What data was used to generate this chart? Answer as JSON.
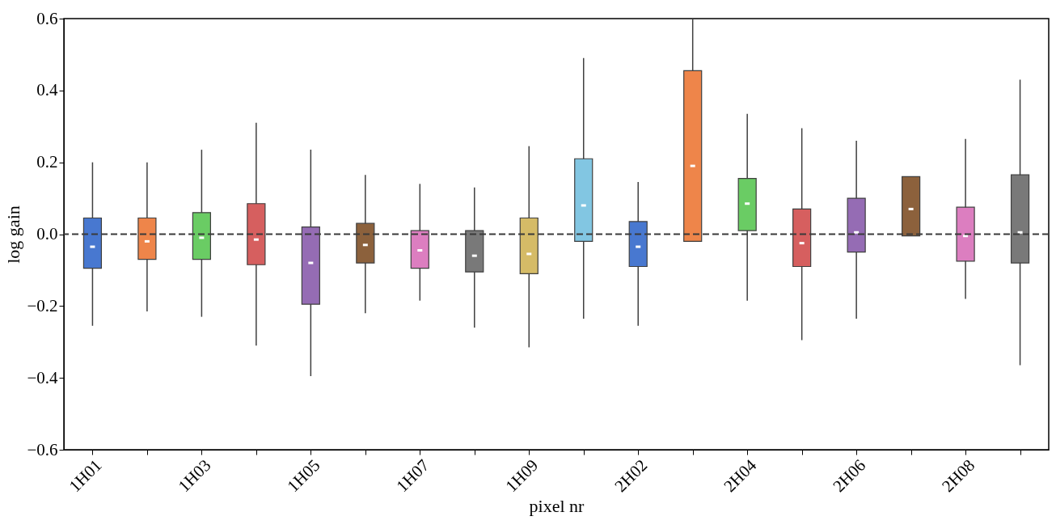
{
  "chart_data": {
    "type": "box",
    "xlabel": "pixel nr",
    "ylabel": "log gain",
    "categories": [
      "1H01",
      null,
      "1H03",
      null,
      "1H05",
      null,
      "1H07",
      null,
      "1H09",
      null,
      "2H02",
      null,
      "2H04",
      null,
      "2H06",
      null,
      "2H08",
      null
    ],
    "colors": [
      "#4878d0",
      "#ee854a",
      "#6acc64",
      "#d65f5f",
      "#956cb4",
      "#8c613c",
      "#dc7ec0",
      "#797979",
      "#d5bb67",
      "#82c6e2",
      "#4878d0",
      "#ee854a",
      "#6acc64",
      "#d65f5f",
      "#956cb4",
      "#8c613c",
      "#dc7ec0",
      "#797979"
    ],
    "boxes": [
      {
        "low": -0.255,
        "q1": -0.095,
        "median": -0.035,
        "q3": 0.045,
        "high": 0.2
      },
      {
        "low": -0.215,
        "q1": -0.07,
        "median": -0.02,
        "q3": 0.045,
        "high": 0.2
      },
      {
        "low": -0.23,
        "q1": -0.07,
        "median": -0.01,
        "q3": 0.06,
        "high": 0.235
      },
      {
        "low": -0.31,
        "q1": -0.085,
        "median": -0.015,
        "q3": 0.085,
        "high": 0.31
      },
      {
        "low": -0.395,
        "q1": -0.195,
        "median": -0.08,
        "q3": 0.02,
        "high": 0.235
      },
      {
        "low": -0.22,
        "q1": -0.08,
        "median": -0.03,
        "q3": 0.03,
        "high": 0.165
      },
      {
        "low": -0.185,
        "q1": -0.095,
        "median": -0.045,
        "q3": 0.01,
        "high": 0.14
      },
      {
        "low": -0.26,
        "q1": -0.105,
        "median": -0.06,
        "q3": 0.01,
        "high": 0.13
      },
      {
        "low": -0.315,
        "q1": -0.11,
        "median": -0.055,
        "q3": 0.045,
        "high": 0.245
      },
      {
        "low": -0.235,
        "q1": -0.02,
        "median": 0.08,
        "q3": 0.21,
        "high": 0.49
      },
      {
        "low": -0.255,
        "q1": -0.09,
        "median": -0.035,
        "q3": 0.035,
        "high": 0.145
      },
      {
        "low": -0.02,
        "q1": -0.02,
        "median": 0.19,
        "q3": 0.455,
        "high": 0.6
      },
      {
        "low": -0.185,
        "q1": 0.01,
        "median": 0.085,
        "q3": 0.155,
        "high": 0.335
      },
      {
        "low": -0.295,
        "q1": -0.09,
        "median": -0.025,
        "q3": 0.07,
        "high": 0.295
      },
      {
        "low": -0.235,
        "q1": -0.05,
        "median": 0.005,
        "q3": 0.1,
        "high": 0.26
      },
      {
        "low": -0.005,
        "q1": -0.005,
        "median": 0.07,
        "q3": 0.16,
        "high": 0.16
      },
      {
        "low": -0.18,
        "q1": -0.075,
        "median": -0.005,
        "q3": 0.075,
        "high": 0.265
      },
      {
        "low": -0.365,
        "q1": -0.08,
        "median": 0.005,
        "q3": 0.165,
        "high": 0.43
      }
    ],
    "ylim": [
      -0.6,
      0.6
    ],
    "yticks": [
      {
        "value": -0.6,
        "label": "−0.6"
      },
      {
        "value": -0.4,
        "label": "−0.4"
      },
      {
        "value": -0.2,
        "label": "−0.2"
      },
      {
        "value": 0.0,
        "label": "0.0"
      },
      0.2,
      0.4,
      0.6
    ],
    "ref_lines": [
      {
        "axis": "y",
        "value": 0,
        "color": "#3a3a3a",
        "line_style": "dashed"
      }
    ],
    "grid": false
  }
}
